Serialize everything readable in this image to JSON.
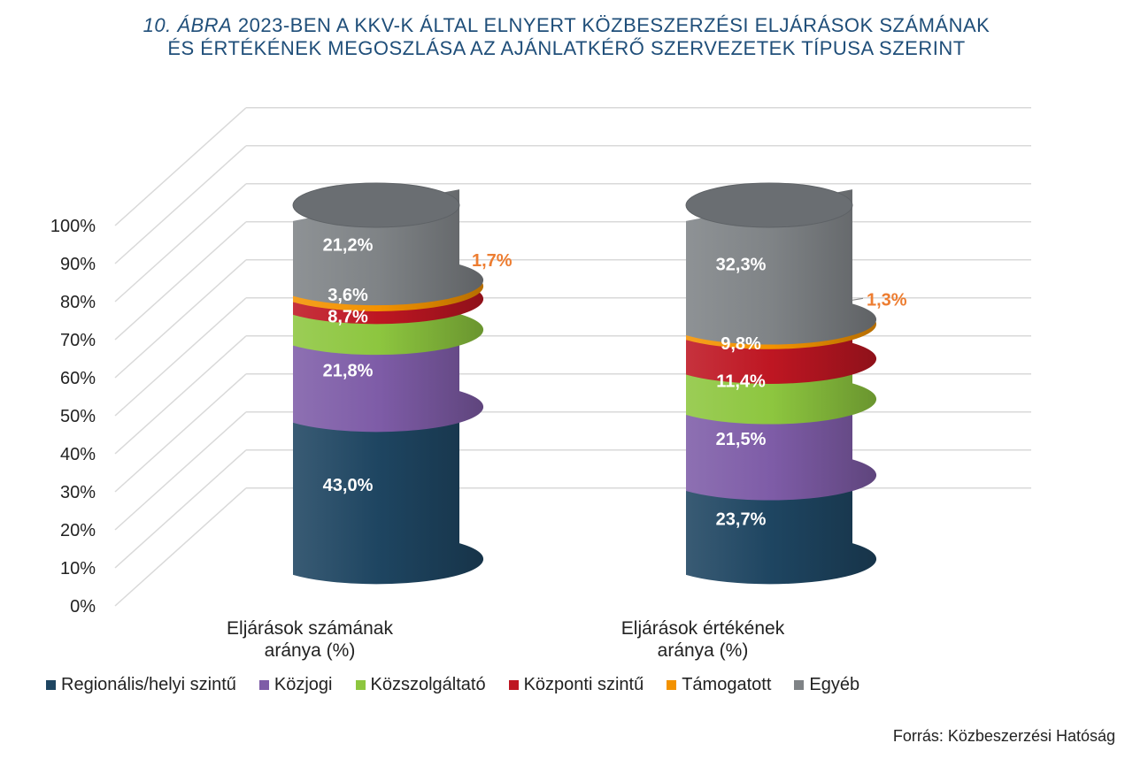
{
  "title": {
    "number": "10. ÁBRA",
    "line1": "2023-BEN A KKV-K ÁLTAL ELNYERT KÖZBESZERZÉSI ELJÁRÁSOK SZÁMÁNAK",
    "line2": "ÉS ÉRTÉKÉNEK MEGOSZLÁSA AZ AJÁNLATKÉRŐ SZERVEZETEK TÍPUSA SZERINT"
  },
  "source": "Forrás: Közbeszerzési Hatóság",
  "colors": {
    "title": "#1f4e79",
    "small_label": "#ed7d31"
  },
  "chart_data": {
    "type": "bar",
    "stacked": true,
    "style": "3d-cylinder",
    "categories": [
      [
        "Eljárások számának",
        "aránya (%)"
      ],
      [
        "Eljárások értékének",
        "aránya (%)"
      ]
    ],
    "y_ticks": [
      "0%",
      "10%",
      "20%",
      "30%",
      "40%",
      "50%",
      "60%",
      "70%",
      "80%",
      "90%",
      "100%"
    ],
    "ylim": [
      0,
      100
    ],
    "grid": true,
    "legend_position": "bottom",
    "series": [
      {
        "name": "Regionális/helyi szintű",
        "color": "#1e4561",
        "values": [
          43.0,
          23.7
        ],
        "labels": [
          "43,0%",
          "23,7%"
        ]
      },
      {
        "name": "Közjogi",
        "color": "#7e5ca7",
        "values": [
          21.8,
          21.5
        ],
        "labels": [
          "21,8%",
          "21,5%"
        ]
      },
      {
        "name": "Közszolgáltató",
        "color": "#8dc63f",
        "values": [
          8.7,
          11.4
        ],
        "labels": [
          "8,7%",
          "11,4%"
        ]
      },
      {
        "name": "Központi szintű",
        "color": "#be1622",
        "values": [
          3.6,
          9.8
        ],
        "labels": [
          "3,6%",
          "9,8%"
        ]
      },
      {
        "name": "Támogatott",
        "color": "#f39200",
        "values": [
          1.7,
          1.3
        ],
        "labels": [
          "1,7%",
          "1,3%"
        ]
      },
      {
        "name": "Egyéb",
        "color": "#7f8386",
        "values": [
          21.2,
          32.3
        ],
        "labels": [
          "21,2%",
          "32,3%"
        ]
      }
    ]
  }
}
